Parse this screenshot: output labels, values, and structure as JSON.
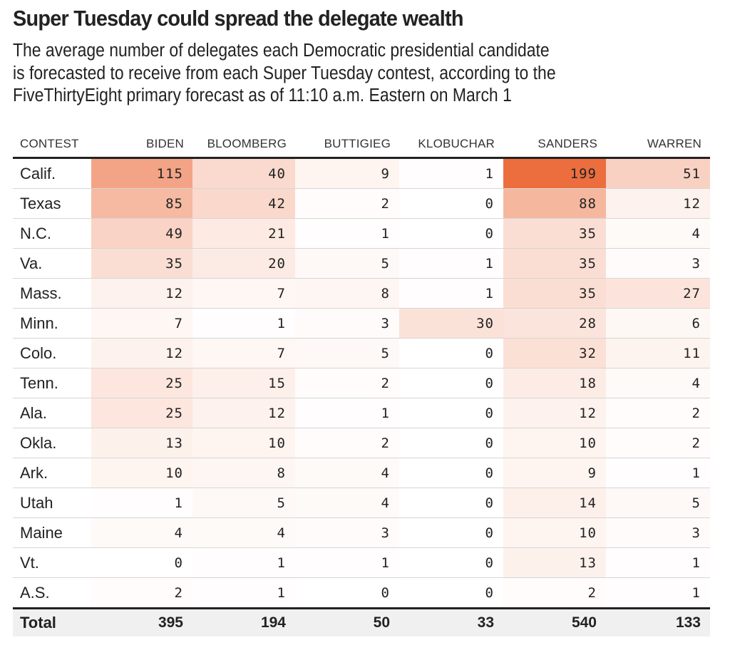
{
  "title": "Super Tuesday could spread the delegate wealth",
  "subtitle_lines": [
    "The average number of delegates each Democratic presidential candidate",
    "is forecasted to receive from each Super Tuesday contest, according to the",
    "FiveThirtyEight primary forecast as of 11:10 a.m. Eastern on March 1"
  ],
  "colors": {
    "heat_max": "#ec6e3f",
    "heat_min": "#ffffff",
    "total_row_bg": "#f0f0f0",
    "text": "#222222"
  },
  "chart_data": {
    "type": "table",
    "title": "Super Tuesday could spread the delegate wealth",
    "subtitle": "The average number of delegates each Democratic presidential candidate is forecasted to receive from each Super Tuesday contest, according to the FiveThirtyEight primary forecast as of 11:10 a.m. Eastern on March 1",
    "columns": [
      "CONTEST",
      "BIDEN",
      "BLOOMBERG",
      "BUTTIGIEG",
      "KLOBUCHAR",
      "SANDERS",
      "WARREN"
    ],
    "color_scale": "sequential orange, shading proportional to delegate count",
    "rows": [
      {
        "contest": "Calif.",
        "values": [
          115,
          40,
          9,
          1,
          199,
          51
        ]
      },
      {
        "contest": "Texas",
        "values": [
          85,
          42,
          2,
          0,
          88,
          12
        ]
      },
      {
        "contest": "N.C.",
        "values": [
          49,
          21,
          1,
          0,
          35,
          4
        ]
      },
      {
        "contest": "Va.",
        "values": [
          35,
          20,
          5,
          1,
          35,
          3
        ]
      },
      {
        "contest": "Mass.",
        "values": [
          12,
          7,
          8,
          1,
          35,
          27
        ]
      },
      {
        "contest": "Minn.",
        "values": [
          7,
          1,
          3,
          30,
          28,
          6
        ]
      },
      {
        "contest": "Colo.",
        "values": [
          12,
          7,
          5,
          0,
          32,
          11
        ]
      },
      {
        "contest": "Tenn.",
        "values": [
          25,
          15,
          2,
          0,
          18,
          4
        ]
      },
      {
        "contest": "Ala.",
        "values": [
          25,
          12,
          1,
          0,
          12,
          2
        ]
      },
      {
        "contest": "Okla.",
        "values": [
          13,
          10,
          2,
          0,
          10,
          2
        ]
      },
      {
        "contest": "Ark.",
        "values": [
          10,
          8,
          4,
          0,
          9,
          1
        ]
      },
      {
        "contest": "Utah",
        "values": [
          1,
          5,
          4,
          0,
          14,
          5
        ]
      },
      {
        "contest": "Maine",
        "values": [
          4,
          4,
          3,
          0,
          10,
          3
        ]
      },
      {
        "contest": "Vt.",
        "values": [
          0,
          1,
          1,
          0,
          13,
          1
        ]
      },
      {
        "contest": "A.S.",
        "values": [
          2,
          1,
          0,
          0,
          2,
          1
        ]
      }
    ],
    "total": {
      "contest": "Total",
      "values": [
        395,
        194,
        50,
        33,
        540,
        133
      ]
    }
  }
}
